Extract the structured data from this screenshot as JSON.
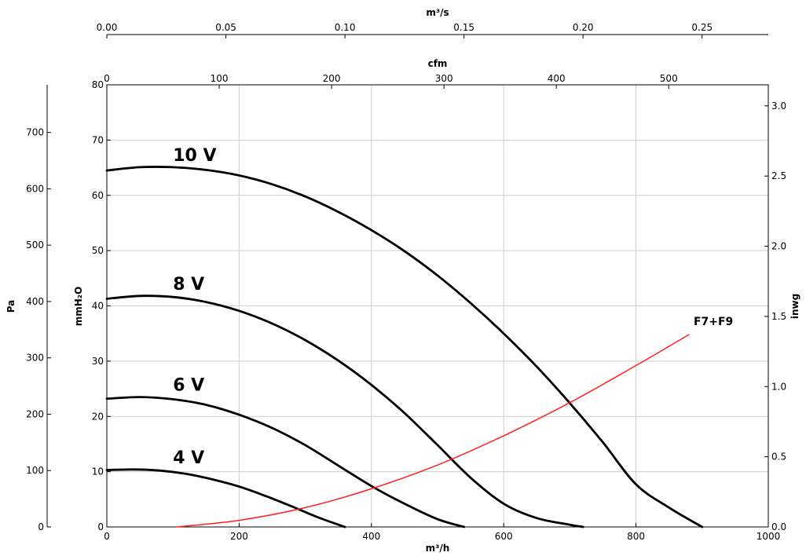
{
  "chart_data": {
    "type": "line",
    "title": "",
    "xlabel": "m³/h",
    "ylabel": "mmH₂O",
    "xlim": [
      0,
      1000
    ],
    "ylim": [
      0,
      80
    ],
    "grid": true,
    "secondary_axes": {
      "top_cfm": {
        "label": "cfm",
        "ticks": [
          0,
          100,
          200,
          300,
          400,
          500
        ],
        "range": [
          0,
          588.6
        ]
      },
      "top_m3s": {
        "label": "m³/s",
        "ticks": [
          "0.00",
          "0.05",
          "0.10",
          "0.15",
          "0.20",
          "0.25"
        ],
        "range": [
          0,
          0.2778
        ]
      },
      "left_pa": {
        "label": "Pa",
        "ticks": [
          0,
          100,
          200,
          300,
          400,
          500,
          600,
          700
        ],
        "range": [
          0,
          784.5
        ]
      },
      "right_inwg": {
        "label": "inwg",
        "ticks": [
          "0.0",
          "0.5",
          "1.0",
          "1.5",
          "2.0",
          "2.5",
          "3.0"
        ],
        "range": [
          0,
          3.15
        ]
      }
    },
    "x_ticks": [
      0,
      200,
      400,
      600,
      800,
      1000
    ],
    "y_ticks": [
      0,
      10,
      20,
      30,
      40,
      50,
      60,
      70,
      80
    ],
    "series": [
      {
        "name": "10 V",
        "color": "#000000",
        "x": [
          0,
          50,
          100,
          150,
          200,
          250,
          300,
          350,
          400,
          450,
          500,
          550,
          600,
          650,
          700,
          750,
          800,
          850,
          900
        ],
        "y": [
          64.5,
          65.1,
          65.1,
          64.6,
          63.6,
          62.0,
          59.8,
          57.0,
          53.7,
          49.9,
          45.5,
          40.5,
          35.0,
          29.0,
          22.4,
          15.3,
          7.7,
          3.5,
          0
        ]
      },
      {
        "name": "8 V",
        "color": "#000000",
        "x": [
          0,
          50,
          100,
          150,
          200,
          250,
          300,
          350,
          400,
          450,
          500,
          550,
          600,
          650,
          700,
          720
        ],
        "y": [
          41.3,
          41.8,
          41.6,
          40.7,
          39.1,
          36.8,
          33.8,
          30.1,
          25.7,
          20.6,
          14.8,
          8.9,
          4.2,
          1.6,
          0.4,
          0
        ]
      },
      {
        "name": "6 V",
        "color": "#000000",
        "x": [
          0,
          50,
          100,
          150,
          200,
          250,
          300,
          350,
          400,
          450,
          500,
          540
        ],
        "y": [
          23.2,
          23.5,
          23.1,
          22.1,
          20.3,
          17.9,
          14.8,
          11.1,
          7.4,
          4.2,
          1.4,
          0
        ]
      },
      {
        "name": "4 V",
        "color": "#000000",
        "x": [
          0,
          40,
          80,
          120,
          160,
          200,
          240,
          280,
          320,
          360
        ],
        "y": [
          10.3,
          10.4,
          10.2,
          9.6,
          8.6,
          7.3,
          5.6,
          3.7,
          1.7,
          0
        ]
      },
      {
        "name": "F7+F9",
        "color": "#ff2020",
        "x": [
          105,
          200,
          300,
          400,
          500,
          600,
          700,
          800,
          880
        ],
        "y": [
          0,
          1.2,
          3.5,
          6.9,
          11.2,
          16.5,
          22.5,
          29.2,
          34.8
        ]
      }
    ]
  },
  "labels": {
    "axis_top_m3s": "m³/s",
    "axis_top_cfm": "cfm",
    "axis_left_pa": "Pa",
    "axis_left_mmh2o": "mmH₂O",
    "axis_right_inwg": "inwg",
    "axis_bottom_m3h": "m³/h"
  }
}
